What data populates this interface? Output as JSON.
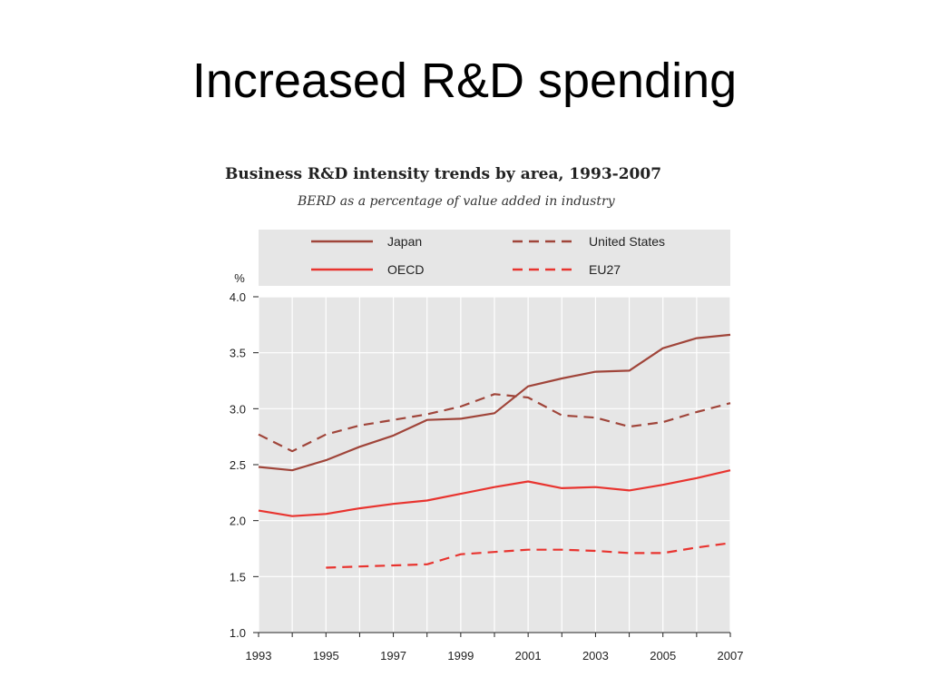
{
  "slide": {
    "title": "Increased R&D spending"
  },
  "chart_data": {
    "type": "line",
    "title": "Business R&D intensity trends by area, 1993-2007",
    "subtitle": "BERD as a percentage of value added in industry",
    "ylabel": "%",
    "xlabel": "",
    "ylim": [
      1.0,
      4.0
    ],
    "xlim": [
      1993,
      2007
    ],
    "yticks": [
      "1.0",
      "1.5",
      "2.0",
      "2.5",
      "3.0",
      "3.5",
      "4.0"
    ],
    "xticks": [
      "1993",
      "1995",
      "1997",
      "1999",
      "2001",
      "2003",
      "2005",
      "2007"
    ],
    "grid": true,
    "legend": "top",
    "x": [
      1993,
      1994,
      1995,
      1996,
      1997,
      1998,
      1999,
      2000,
      2001,
      2002,
      2003,
      2004,
      2005,
      2006,
      2007
    ],
    "series": [
      {
        "name": "Japan",
        "color": "#a0453a",
        "dash": false,
        "values": [
          2.48,
          2.45,
          2.54,
          2.66,
          2.76,
          2.9,
          2.91,
          2.96,
          3.2,
          3.27,
          3.33,
          3.34,
          3.54,
          3.63,
          3.66
        ]
      },
      {
        "name": "United States",
        "color": "#a0453a",
        "dash": true,
        "values": [
          2.77,
          2.62,
          2.77,
          2.85,
          2.9,
          2.95,
          3.02,
          3.13,
          3.1,
          2.94,
          2.92,
          2.84,
          2.88,
          2.97,
          3.05
        ]
      },
      {
        "name": "OECD",
        "color": "#e8342f",
        "dash": false,
        "values": [
          2.09,
          2.04,
          2.06,
          2.11,
          2.15,
          2.18,
          2.24,
          2.3,
          2.35,
          2.29,
          2.3,
          2.27,
          2.32,
          2.38,
          2.45
        ]
      },
      {
        "name": "EU27",
        "color": "#e8342f",
        "dash": true,
        "values": [
          null,
          null,
          1.58,
          1.59,
          1.6,
          1.61,
          1.7,
          1.72,
          1.74,
          1.74,
          1.73,
          1.71,
          1.71,
          1.76,
          1.8
        ]
      }
    ]
  }
}
